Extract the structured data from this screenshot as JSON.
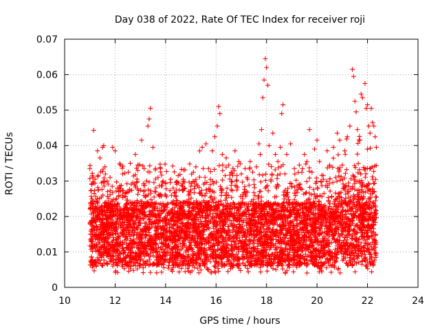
{
  "chart_data": {
    "type": "scatter",
    "title": "Day 038 of 2022, Rate Of TEC Index for receiver roji",
    "xlabel": "GPS time / hours",
    "ylabel": "ROTI / TECUs",
    "xlim": [
      10,
      24
    ],
    "ylim": [
      0,
      0.07
    ],
    "xticks": [
      10,
      12,
      14,
      16,
      18,
      20,
      22,
      24
    ],
    "xtick_labels": [
      "10",
      "12",
      "14",
      "16",
      "18",
      "20",
      "22",
      "24"
    ],
    "yticks": [
      0,
      0.01,
      0.02,
      0.03,
      0.04,
      0.05,
      0.06,
      0.07
    ],
    "ytick_labels": [
      "0",
      "0.01",
      "0.02",
      "0.03",
      "0.04",
      "0.05",
      "0.06",
      "0.07"
    ],
    "grid": true,
    "marker": "plus",
    "color": "#ff0000",
    "series": [
      {
        "name": "ROTI",
        "points": [
          [
            11.0,
            0.0335
          ],
          [
            11.1,
            0.0315
          ],
          [
            11.15,
            0.0443
          ],
          [
            11.2,
            0.0305
          ],
          [
            11.3,
            0.0385
          ],
          [
            11.4,
            0.0365
          ],
          [
            11.5,
            0.0395
          ],
          [
            11.55,
            0.04
          ],
          [
            11.6,
            0.034
          ],
          [
            11.7,
            0.027
          ],
          [
            11.8,
            0.031
          ],
          [
            11.9,
            0.0395
          ],
          [
            12.0,
            0.0385
          ],
          [
            12.1,
            0.028
          ],
          [
            12.3,
            0.032
          ],
          [
            12.4,
            0.0265
          ],
          [
            12.6,
            0.035
          ],
          [
            12.7,
            0.0295
          ],
          [
            12.8,
            0.0375
          ],
          [
            12.9,
            0.0345
          ],
          [
            13.05,
            0.0415
          ],
          [
            13.15,
            0.0335
          ],
          [
            13.25,
            0.03
          ],
          [
            13.3,
            0.0455
          ],
          [
            13.35,
            0.0475
          ],
          [
            13.4,
            0.0505
          ],
          [
            13.5,
            0.0395
          ],
          [
            13.6,
            0.0335
          ],
          [
            13.7,
            0.031
          ],
          [
            13.8,
            0.0335
          ],
          [
            13.9,
            0.03
          ],
          [
            14.0,
            0.0295
          ],
          [
            14.2,
            0.0305
          ],
          [
            14.3,
            0.028
          ],
          [
            14.5,
            0.0315
          ],
          [
            14.7,
            0.0305
          ],
          [
            14.9,
            0.027
          ],
          [
            15.0,
            0.0275
          ],
          [
            15.1,
            0.0325
          ],
          [
            15.2,
            0.034
          ],
          [
            15.35,
            0.0385
          ],
          [
            15.45,
            0.0395
          ],
          [
            15.6,
            0.0405
          ],
          [
            15.7,
            0.0335
          ],
          [
            15.85,
            0.0385
          ],
          [
            15.95,
            0.0425
          ],
          [
            16.05,
            0.0455
          ],
          [
            16.1,
            0.051
          ],
          [
            16.15,
            0.049
          ],
          [
            16.25,
            0.0375
          ],
          [
            16.4,
            0.0365
          ],
          [
            16.5,
            0.0345
          ],
          [
            16.6,
            0.0325
          ],
          [
            16.75,
            0.0385
          ],
          [
            16.9,
            0.0355
          ],
          [
            17.0,
            0.032
          ],
          [
            17.15,
            0.0335
          ],
          [
            17.25,
            0.0305
          ],
          [
            17.35,
            0.0355
          ],
          [
            17.45,
            0.0325
          ],
          [
            17.6,
            0.034
          ],
          [
            17.7,
            0.0405
          ],
          [
            17.75,
            0.0375
          ],
          [
            17.8,
            0.0445
          ],
          [
            17.85,
            0.0535
          ],
          [
            17.9,
            0.0585
          ],
          [
            17.95,
            0.0645
          ],
          [
            18.0,
            0.062
          ],
          [
            18.05,
            0.057
          ],
          [
            18.1,
            0.04
          ],
          [
            18.25,
            0.0435
          ],
          [
            18.35,
            0.0375
          ],
          [
            18.45,
            0.0355
          ],
          [
            18.55,
            0.0395
          ],
          [
            18.6,
            0.049
          ],
          [
            18.65,
            0.0515
          ],
          [
            18.8,
            0.0375
          ],
          [
            18.95,
            0.0405
          ],
          [
            19.1,
            0.0335
          ],
          [
            19.3,
            0.0345
          ],
          [
            19.5,
            0.0375
          ],
          [
            19.6,
            0.0355
          ],
          [
            19.7,
            0.0445
          ],
          [
            19.8,
            0.0325
          ],
          [
            19.9,
            0.039
          ],
          [
            20.0,
            0.0415
          ],
          [
            20.1,
            0.0355
          ],
          [
            20.25,
            0.0305
          ],
          [
            20.4,
            0.0385
          ],
          [
            20.5,
            0.0345
          ],
          [
            20.65,
            0.0395
          ],
          [
            20.8,
            0.0435
          ],
          [
            20.9,
            0.0415
          ],
          [
            21.0,
            0.0345
          ],
          [
            21.1,
            0.0385
          ],
          [
            21.2,
            0.0425
          ],
          [
            21.3,
            0.0455
          ],
          [
            21.4,
            0.0615
          ],
          [
            21.45,
            0.0595
          ],
          [
            21.5,
            0.0525
          ],
          [
            21.55,
            0.0495
          ],
          [
            21.6,
            0.0445
          ],
          [
            21.7,
            0.0415
          ],
          [
            21.75,
            0.0545
          ],
          [
            21.8,
            0.0535
          ],
          [
            21.9,
            0.0575
          ],
          [
            21.95,
            0.0505
          ],
          [
            22.0,
            0.0515
          ],
          [
            22.05,
            0.0455
          ],
          [
            22.1,
            0.0435
          ],
          [
            22.15,
            0.0505
          ],
          [
            22.2,
            0.0465
          ],
          [
            22.25,
            0.0455
          ],
          [
            22.3,
            0.0425
          ],
          [
            22.35,
            0.0395
          ]
        ]
      }
    ]
  }
}
